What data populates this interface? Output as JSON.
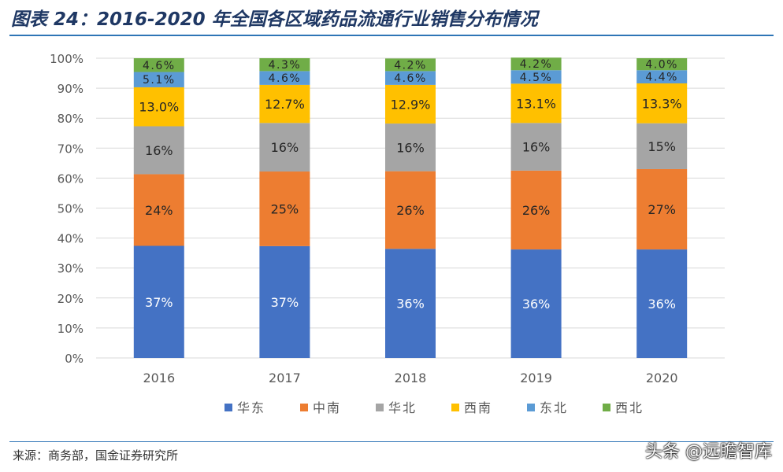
{
  "title": "图表 24：2016-2020 年全国各区域药品流通行业销售分布情况",
  "source": "来源：商务部，国金证券研究所",
  "watermark": "头条 @远瞻智库",
  "chart_data": {
    "type": "bar",
    "stacked": true,
    "categories": [
      "2016",
      "2017",
      "2018",
      "2019",
      "2020"
    ],
    "ylim": [
      0,
      100
    ],
    "y_ticks": [
      "0%",
      "10%",
      "20%",
      "30%",
      "40%",
      "50%",
      "60%",
      "70%",
      "80%",
      "90%",
      "100%"
    ],
    "grid": true,
    "legend_position": "bottom",
    "series": [
      {
        "name": "华东",
        "color": "#4472c4",
        "values": [
          37.4,
          37.3,
          36.4,
          36.2,
          36.2
        ],
        "labels": [
          "37%",
          "37%",
          "36%",
          "36%",
          "36%"
        ]
      },
      {
        "name": "中南",
        "color": "#ed7d31",
        "values": [
          23.9,
          24.9,
          25.9,
          26.3,
          26.8
        ],
        "labels": [
          "24%",
          "25%",
          "26%",
          "26%",
          "27%"
        ]
      },
      {
        "name": "华北",
        "color": "#a5a5a5",
        "values": [
          16.0,
          16.2,
          15.9,
          15.9,
          15.3
        ],
        "labels": [
          "16%",
          "16%",
          "16%",
          "16%",
          "15%"
        ]
      },
      {
        "name": "西南",
        "color": "#ffc000",
        "values": [
          13.0,
          12.7,
          12.9,
          13.1,
          13.3
        ],
        "labels": [
          "13.0%",
          "12.7%",
          "12.9%",
          "13.1%",
          "13.3%"
        ]
      },
      {
        "name": "东北",
        "color": "#5b9bd5",
        "values": [
          5.1,
          4.6,
          4.6,
          4.5,
          4.4
        ],
        "labels": [
          "5.1%",
          "4.6%",
          "4.6%",
          "4.5%",
          "4.4%"
        ]
      },
      {
        "name": "西北",
        "color": "#70ad47",
        "values": [
          4.6,
          4.3,
          4.2,
          4.2,
          4.0
        ],
        "labels": [
          "4.6%",
          "4.3%",
          "4.2%",
          "4.2%",
          "4.0%"
        ]
      }
    ]
  }
}
